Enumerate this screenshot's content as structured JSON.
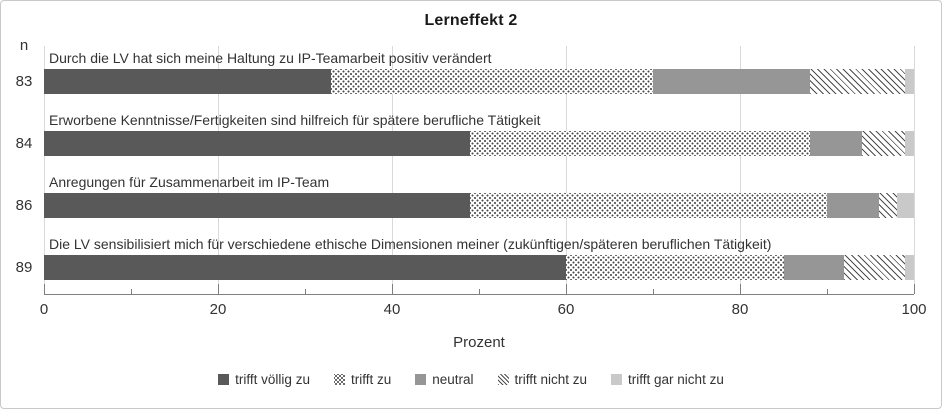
{
  "chart_data": {
    "type": "bar",
    "variant": "horizontal-stacked-100pct",
    "title": "Lerneffekt 2",
    "xlabel": "Prozent",
    "n_column_header": "n",
    "xlim": [
      0,
      100
    ],
    "xticks": [
      0,
      20,
      40,
      60,
      80,
      100
    ],
    "minor_tick_step": 10,
    "grid": true,
    "legend_position": "bottom",
    "series": [
      {
        "name": "trifft völlig zu",
        "fill": "solid",
        "color": "#595959",
        "values": [
          33,
          49,
          49,
          60
        ]
      },
      {
        "name": "trifft zu",
        "fill": "dotted",
        "color": "#ffffff",
        "values": [
          37,
          39,
          41,
          25
        ]
      },
      {
        "name": "neutral",
        "fill": "solid",
        "color": "#969696",
        "values": [
          18,
          6,
          6,
          7
        ]
      },
      {
        "name": "trifft nicht zu",
        "fill": "diagonal-hatch",
        "color": "#ffffff",
        "values": [
          11,
          5,
          2,
          7
        ]
      },
      {
        "name": "trifft gar nicht zu",
        "fill": "solid",
        "color": "#c9c9c9",
        "values": [
          1,
          1,
          2,
          1
        ]
      }
    ],
    "categories": [
      {
        "n": "83",
        "label": "Durch die LV hat sich meine Haltung zu IP-Teamarbeit positiv verändert"
      },
      {
        "n": "84",
        "label": "Erworbene Kenntnisse/Fertigkeiten sind hilfreich für spätere berufliche Tätigkeit"
      },
      {
        "n": "86",
        "label": "Anregungen für Zusammenarbeit im IP-Team"
      },
      {
        "n": "89",
        "label": "Die LV sensibilisiert mich für verschiedene ethische Dimensionen meiner (zukünftigen/späteren beruflichen Tätigkeit)"
      }
    ],
    "colors": {
      "gridline": "#d9d9d9",
      "axis": "#7f7f7f",
      "text": "#333333",
      "title": "#1a1a1a"
    }
  }
}
